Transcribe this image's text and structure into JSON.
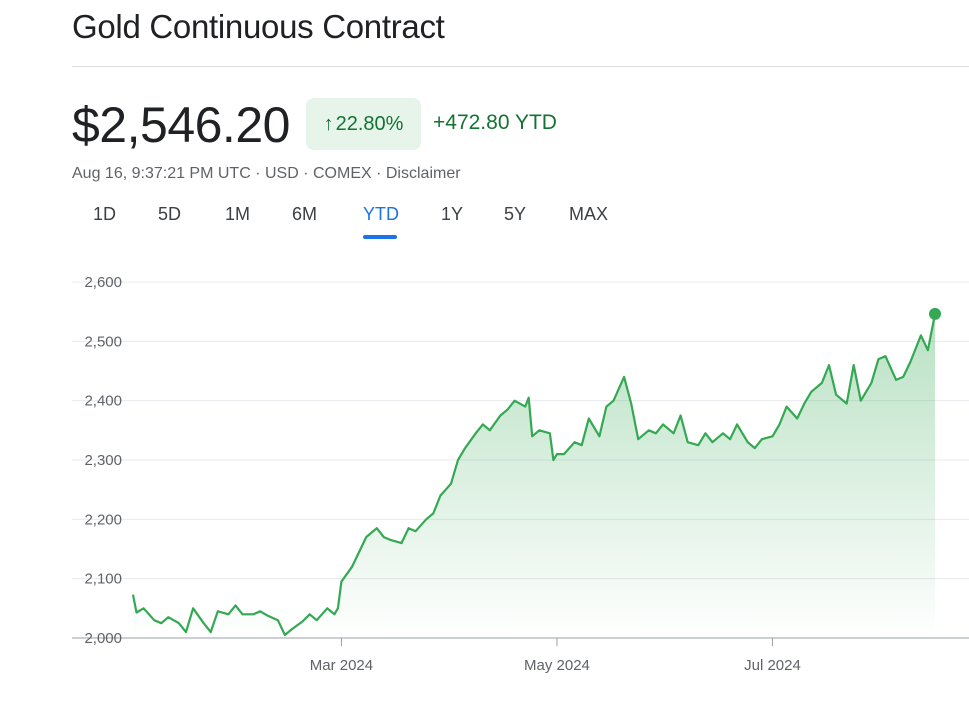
{
  "title": "Gold Continuous Contract",
  "price": "$2,546.20",
  "change_pct": "22.80%",
  "change_arrow": "↑",
  "change_abs": "+472.80 YTD",
  "meta": {
    "timestamp": "Aug 16, 9:37:21 PM UTC",
    "sep1": " · ",
    "currency": "USD",
    "sep2": " · ",
    "exchange": "COMEX",
    "sep3": " · ",
    "disclaimer": "Disclaimer"
  },
  "tabs": [
    "1D",
    "5D",
    "1M",
    "6M",
    "YTD",
    "1Y",
    "5Y",
    "MAX"
  ],
  "active_tab": "YTD",
  "colors": {
    "accent": "#1a73e8",
    "positive": "#137333",
    "line": "#34a853"
  },
  "chart_data": {
    "type": "area",
    "title": "",
    "xlabel": "",
    "ylabel": "",
    "ylim": [
      2000,
      2600
    ],
    "yticks": [
      "2,600",
      "2,500",
      "2,400",
      "2,300",
      "2,200",
      "2,100",
      "2,000"
    ],
    "ytick_values": [
      2600,
      2500,
      2400,
      2300,
      2200,
      2100,
      2000
    ],
    "xticks": [
      {
        "label": "Mar 2024",
        "date": "2024-03-01"
      },
      {
        "label": "May 2024",
        "date": "2024-05-01"
      },
      {
        "label": "Jul 2024",
        "date": "2024-07-01"
      }
    ],
    "xlim": [
      "2024-01-02",
      "2024-08-16"
    ],
    "grid": true,
    "series": [
      {
        "points": [
          [
            "2024-01-02",
            2073
          ],
          [
            "2024-01-03",
            2043
          ],
          [
            "2024-01-05",
            2050
          ],
          [
            "2024-01-08",
            2030
          ],
          [
            "2024-01-10",
            2025
          ],
          [
            "2024-01-12",
            2035
          ],
          [
            "2024-01-15",
            2025
          ],
          [
            "2024-01-17",
            2010
          ],
          [
            "2024-01-19",
            2050
          ],
          [
            "2024-01-22",
            2025
          ],
          [
            "2024-01-24",
            2010
          ],
          [
            "2024-01-26",
            2045
          ],
          [
            "2024-01-29",
            2040
          ],
          [
            "2024-01-31",
            2055
          ],
          [
            "2024-02-02",
            2040
          ],
          [
            "2024-02-05",
            2040
          ],
          [
            "2024-02-07",
            2045
          ],
          [
            "2024-02-09",
            2038
          ],
          [
            "2024-02-12",
            2030
          ],
          [
            "2024-02-14",
            2005
          ],
          [
            "2024-02-16",
            2015
          ],
          [
            "2024-02-19",
            2028
          ],
          [
            "2024-02-21",
            2040
          ],
          [
            "2024-02-23",
            2030
          ],
          [
            "2024-02-26",
            2050
          ],
          [
            "2024-02-28",
            2040
          ],
          [
            "2024-02-29",
            2050
          ],
          [
            "2024-03-01",
            2095
          ],
          [
            "2024-03-04",
            2120
          ],
          [
            "2024-03-06",
            2145
          ],
          [
            "2024-03-08",
            2170
          ],
          [
            "2024-03-11",
            2185
          ],
          [
            "2024-03-13",
            2170
          ],
          [
            "2024-03-15",
            2165
          ],
          [
            "2024-03-18",
            2160
          ],
          [
            "2024-03-20",
            2185
          ],
          [
            "2024-03-22",
            2180
          ],
          [
            "2024-03-25",
            2200
          ],
          [
            "2024-03-27",
            2210
          ],
          [
            "2024-03-29",
            2240
          ],
          [
            "2024-04-01",
            2260
          ],
          [
            "2024-04-03",
            2300
          ],
          [
            "2024-04-05",
            2320
          ],
          [
            "2024-04-08",
            2345
          ],
          [
            "2024-04-10",
            2360
          ],
          [
            "2024-04-12",
            2350
          ],
          [
            "2024-04-15",
            2375
          ],
          [
            "2024-04-17",
            2385
          ],
          [
            "2024-04-19",
            2400
          ],
          [
            "2024-04-22",
            2390
          ],
          [
            "2024-04-23",
            2405
          ],
          [
            "2024-04-24",
            2340
          ],
          [
            "2024-04-26",
            2350
          ],
          [
            "2024-04-29",
            2345
          ],
          [
            "2024-04-30",
            2300
          ],
          [
            "2024-05-01",
            2310
          ],
          [
            "2024-05-03",
            2310
          ],
          [
            "2024-05-06",
            2330
          ],
          [
            "2024-05-08",
            2325
          ],
          [
            "2024-05-10",
            2370
          ],
          [
            "2024-05-13",
            2340
          ],
          [
            "2024-05-15",
            2390
          ],
          [
            "2024-05-17",
            2400
          ],
          [
            "2024-05-20",
            2440
          ],
          [
            "2024-05-22",
            2395
          ],
          [
            "2024-05-24",
            2335
          ],
          [
            "2024-05-27",
            2350
          ],
          [
            "2024-05-29",
            2345
          ],
          [
            "2024-05-31",
            2360
          ],
          [
            "2024-06-03",
            2345
          ],
          [
            "2024-06-05",
            2375
          ],
          [
            "2024-06-07",
            2330
          ],
          [
            "2024-06-10",
            2325
          ],
          [
            "2024-06-12",
            2345
          ],
          [
            "2024-06-14",
            2330
          ],
          [
            "2024-06-17",
            2345
          ],
          [
            "2024-06-19",
            2335
          ],
          [
            "2024-06-21",
            2360
          ],
          [
            "2024-06-24",
            2330
          ],
          [
            "2024-06-26",
            2320
          ],
          [
            "2024-06-28",
            2335
          ],
          [
            "2024-07-01",
            2340
          ],
          [
            "2024-07-03",
            2360
          ],
          [
            "2024-07-05",
            2390
          ],
          [
            "2024-07-08",
            2370
          ],
          [
            "2024-07-10",
            2395
          ],
          [
            "2024-07-12",
            2415
          ],
          [
            "2024-07-15",
            2430
          ],
          [
            "2024-07-17",
            2460
          ],
          [
            "2024-07-19",
            2410
          ],
          [
            "2024-07-22",
            2395
          ],
          [
            "2024-07-24",
            2460
          ],
          [
            "2024-07-26",
            2400
          ],
          [
            "2024-07-29",
            2430
          ],
          [
            "2024-07-31",
            2470
          ],
          [
            "2024-08-02",
            2475
          ],
          [
            "2024-08-05",
            2435
          ],
          [
            "2024-08-07",
            2440
          ],
          [
            "2024-08-09",
            2465
          ],
          [
            "2024-08-12",
            2510
          ],
          [
            "2024-08-14",
            2485
          ],
          [
            "2024-08-16",
            2546.2
          ]
        ]
      }
    ]
  }
}
